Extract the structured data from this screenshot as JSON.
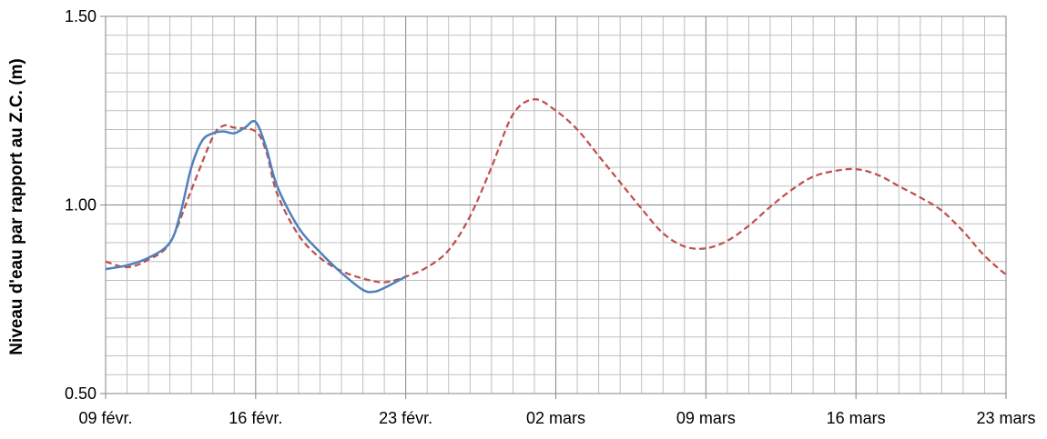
{
  "chart_data": {
    "type": "line",
    "title": "",
    "xlabel": "",
    "ylabel": "Niveau d'eau par rapport au Z.C. (m)",
    "x_range": [
      "2014-02-09",
      "2014-03-23"
    ],
    "y_range": [
      0.5,
      1.5
    ],
    "y_ticks": [
      "0.50",
      "1.00",
      "1.50"
    ],
    "x_ticks": [
      {
        "date": "2014-02-09",
        "label": "09 févr."
      },
      {
        "date": "2014-02-16",
        "label": "16 févr."
      },
      {
        "date": "2014-02-23",
        "label": "23 févr."
      },
      {
        "date": "2014-03-02",
        "label": "02 mars"
      },
      {
        "date": "2014-03-09",
        "label": "09 mars"
      },
      {
        "date": "2014-03-16",
        "label": "16 mars"
      },
      {
        "date": "2014-03-23",
        "label": "23 mars"
      }
    ],
    "grid": true,
    "legend": "none",
    "series": [
      {
        "style": "solid",
        "color": "#4f81bd",
        "points": [
          [
            "2014-02-09",
            0.83
          ],
          [
            "2014-02-10",
            0.84
          ],
          [
            "2014-02-11",
            0.86
          ],
          [
            "2014-02-12",
            0.9
          ],
          [
            "2014-02-12T12:00",
            0.98
          ],
          [
            "2014-02-13",
            1.1
          ],
          [
            "2014-02-13T12:00",
            1.17
          ],
          [
            "2014-02-14",
            1.19
          ],
          [
            "2014-02-14T12:00",
            1.195
          ],
          [
            "2014-02-15",
            1.19
          ],
          [
            "2014-02-15T12:00",
            1.205
          ],
          [
            "2014-02-16",
            1.22
          ],
          [
            "2014-02-16T12:00",
            1.15
          ],
          [
            "2014-02-17",
            1.05
          ],
          [
            "2014-02-18",
            0.94
          ],
          [
            "2014-02-19",
            0.875
          ],
          [
            "2014-02-20",
            0.82
          ],
          [
            "2014-02-21",
            0.775
          ],
          [
            "2014-02-21T12:00",
            0.77
          ],
          [
            "2014-02-22",
            0.78
          ],
          [
            "2014-02-23",
            0.81
          ]
        ]
      },
      {
        "style": "dashed",
        "color": "#c0504d",
        "points": [
          [
            "2014-02-09",
            0.85
          ],
          [
            "2014-02-10",
            0.835
          ],
          [
            "2014-02-11",
            0.855
          ],
          [
            "2014-02-12",
            0.9
          ],
          [
            "2014-02-13",
            1.04
          ],
          [
            "2014-02-14",
            1.18
          ],
          [
            "2014-02-14T12:00",
            1.21
          ],
          [
            "2014-02-15",
            1.205
          ],
          [
            "2014-02-16",
            1.195
          ],
          [
            "2014-02-16T12:00",
            1.14
          ],
          [
            "2014-02-17",
            1.03
          ],
          [
            "2014-02-18",
            0.92
          ],
          [
            "2014-02-19",
            0.86
          ],
          [
            "2014-02-20",
            0.825
          ],
          [
            "2014-02-21",
            0.805
          ],
          [
            "2014-02-22",
            0.795
          ],
          [
            "2014-02-23",
            0.81
          ],
          [
            "2014-02-24",
            0.835
          ],
          [
            "2014-02-25",
            0.88
          ],
          [
            "2014-02-26",
            0.97
          ],
          [
            "2014-02-27",
            1.1
          ],
          [
            "2014-02-28",
            1.24
          ],
          [
            "2014-03-01",
            1.28
          ],
          [
            "2014-03-02",
            1.25
          ],
          [
            "2014-03-03",
            1.2
          ],
          [
            "2014-03-04",
            1.13
          ],
          [
            "2014-03-05",
            1.06
          ],
          [
            "2014-03-06",
            0.99
          ],
          [
            "2014-03-07",
            0.925
          ],
          [
            "2014-03-08",
            0.89
          ],
          [
            "2014-03-09",
            0.885
          ],
          [
            "2014-03-10",
            0.905
          ],
          [
            "2014-03-11",
            0.945
          ],
          [
            "2014-03-12",
            0.995
          ],
          [
            "2014-03-13",
            1.04
          ],
          [
            "2014-03-14",
            1.075
          ],
          [
            "2014-03-15",
            1.09
          ],
          [
            "2014-03-16",
            1.095
          ],
          [
            "2014-03-17",
            1.08
          ],
          [
            "2014-03-18",
            1.05
          ],
          [
            "2014-03-19",
            1.02
          ],
          [
            "2014-03-20",
            0.985
          ],
          [
            "2014-03-21",
            0.93
          ],
          [
            "2014-03-22",
            0.865
          ],
          [
            "2014-03-23",
            0.815
          ]
        ]
      }
    ]
  }
}
